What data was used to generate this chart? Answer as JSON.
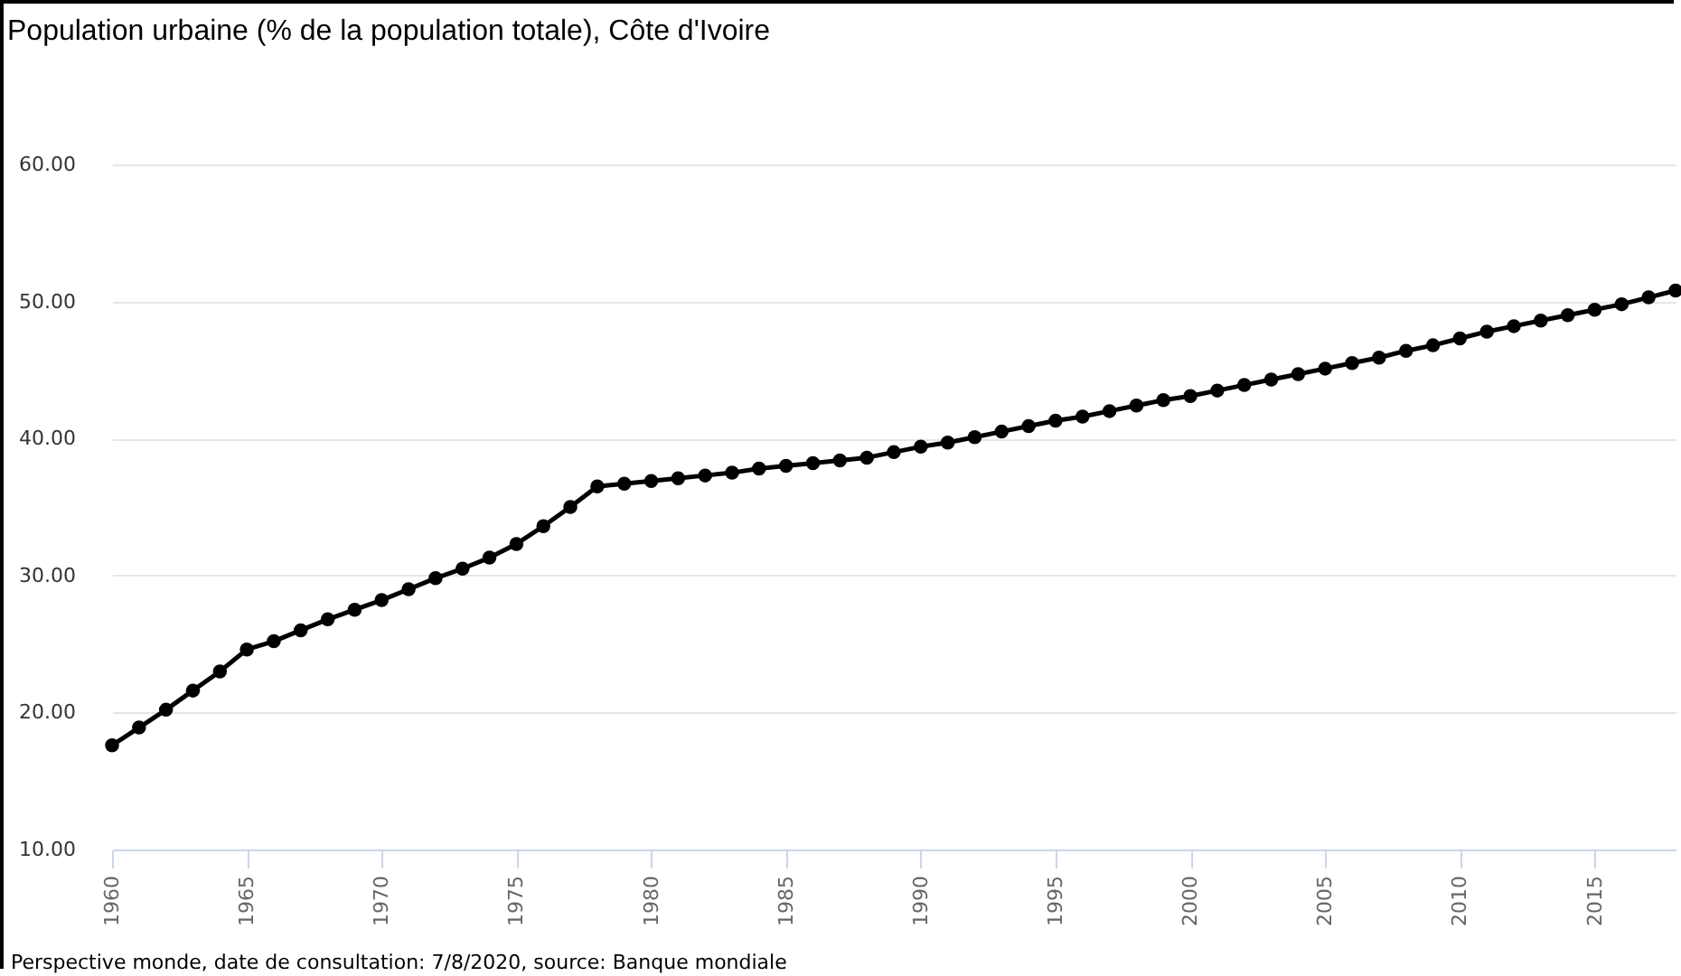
{
  "chart_data": {
    "type": "line",
    "title": "Population urbaine (% de la population totale), Côte d'Ivoire",
    "annotations": [
      "Perspective monde, date de consultation: 7/8/2020, source: Banque mondiale"
    ],
    "x": [
      1960,
      1961,
      1962,
      1963,
      1964,
      1965,
      1966,
      1967,
      1968,
      1969,
      1970,
      1971,
      1972,
      1973,
      1974,
      1975,
      1976,
      1977,
      1978,
      1979,
      1980,
      1981,
      1982,
      1983,
      1984,
      1985,
      1986,
      1987,
      1988,
      1989,
      1990,
      1991,
      1992,
      1993,
      1994,
      1995,
      1996,
      1997,
      1998,
      1999,
      2000,
      2001,
      2002,
      2003,
      2004,
      2005,
      2006,
      2007,
      2008,
      2009,
      2010,
      2011,
      2012,
      2013,
      2014,
      2015,
      2016,
      2017,
      2018
    ],
    "series": [
      {
        "color": "#000000",
        "values": [
          17.6,
          18.9,
          20.2,
          21.6,
          23.0,
          24.6,
          25.2,
          26.0,
          26.8,
          27.5,
          28.2,
          29.0,
          29.8,
          30.5,
          31.3,
          32.3,
          33.6,
          35.0,
          36.5,
          36.7,
          36.9,
          37.1,
          37.3,
          37.5,
          37.8,
          38.0,
          38.2,
          38.4,
          38.6,
          39.0,
          39.4,
          39.7,
          40.1,
          40.5,
          40.9,
          41.3,
          41.6,
          42.0,
          42.4,
          42.8,
          43.1,
          43.5,
          43.9,
          44.3,
          44.7,
          45.1,
          45.5,
          45.9,
          46.4,
          46.8,
          47.3,
          47.8,
          48.2,
          48.6,
          49.0,
          49.4,
          49.8,
          50.3,
          50.8
        ]
      }
    ],
    "xlim": [
      1960,
      2018
    ],
    "xticks": [
      1960,
      1965,
      1970,
      1975,
      1980,
      1985,
      1990,
      1995,
      2000,
      2005,
      2010,
      2015
    ],
    "ylim": [
      10,
      60
    ],
    "yticks": [
      {
        "value": 10,
        "label": "10.00"
      },
      {
        "value": 20,
        "label": "20.00"
      },
      {
        "value": 30,
        "label": "30.00"
      },
      {
        "value": 40,
        "label": "40.00"
      },
      {
        "value": 50,
        "label": "50.00"
      },
      {
        "value": 60,
        "label": "60.00"
      }
    ],
    "grid": "y",
    "marker": "circle",
    "line_style": "solid"
  }
}
